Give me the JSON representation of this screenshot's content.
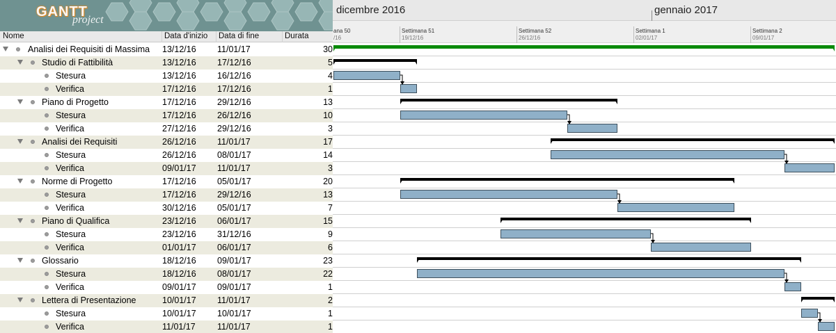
{
  "branding": {
    "logo_text": "GANTT",
    "logo_sub": "project"
  },
  "columns": {
    "name": "Nome",
    "start": "Data d'inizio",
    "end": "Data di fine",
    "duration": "Durata"
  },
  "timeline": {
    "months": [
      "dicembre 2016",
      "gennaio 2017"
    ],
    "weeks": [
      {
        "label": "ana 50",
        "date": "/16"
      },
      {
        "label": "Settimana 51",
        "date": "19/12/16"
      },
      {
        "label": "Settimana 52",
        "date": "26/12/16"
      },
      {
        "label": "Settimana 1",
        "date": "02/01/17"
      },
      {
        "label": "Settimana 2",
        "date": "09/01/17"
      }
    ],
    "colors": {
      "summary": "#000000",
      "task": "#8fb0c8",
      "task_border": "#3d4f5c",
      "project": "#0a8a0a",
      "grid": "#cfcfcf"
    }
  },
  "tasks": [
    {
      "name": "Analisi dei Requisiti di Massima",
      "start": "13/12/16",
      "end": "11/01/17",
      "duration": "30",
      "level": 0,
      "type": "project",
      "bar_start": 0,
      "bar_days": 30
    },
    {
      "name": "Studio di Fattibilità",
      "start": "13/12/16",
      "end": "17/12/16",
      "duration": "5",
      "level": 1,
      "type": "summary",
      "bar_start": 0,
      "bar_days": 5
    },
    {
      "name": "Stesura",
      "start": "13/12/16",
      "end": "16/12/16",
      "duration": "4",
      "level": 2,
      "type": "task",
      "bar_start": 0,
      "bar_days": 4
    },
    {
      "name": "Verifica",
      "start": "17/12/16",
      "end": "17/12/16",
      "duration": "1",
      "level": 2,
      "type": "task",
      "bar_start": 4,
      "bar_days": 1
    },
    {
      "name": "Piano di Progetto",
      "start": "17/12/16",
      "end": "29/12/16",
      "duration": "13",
      "level": 1,
      "type": "summary",
      "bar_start": 4,
      "bar_days": 13
    },
    {
      "name": "Stesura",
      "start": "17/12/16",
      "end": "26/12/16",
      "duration": "10",
      "level": 2,
      "type": "task",
      "bar_start": 4,
      "bar_days": 10
    },
    {
      "name": "Verifica",
      "start": "27/12/16",
      "end": "29/12/16",
      "duration": "3",
      "level": 2,
      "type": "task",
      "bar_start": 14,
      "bar_days": 3
    },
    {
      "name": "Analisi dei Requisiti",
      "start": "26/12/16",
      "end": "11/01/17",
      "duration": "17",
      "level": 1,
      "type": "summary",
      "bar_start": 13,
      "bar_days": 17
    },
    {
      "name": "Stesura",
      "start": "26/12/16",
      "end": "08/01/17",
      "duration": "14",
      "level": 2,
      "type": "task",
      "bar_start": 13,
      "bar_days": 14
    },
    {
      "name": "Verifica",
      "start": "09/01/17",
      "end": "11/01/17",
      "duration": "3",
      "level": 2,
      "type": "task",
      "bar_start": 27,
      "bar_days": 3
    },
    {
      "name": "Norme di Progetto",
      "start": "17/12/16",
      "end": "05/01/17",
      "duration": "20",
      "level": 1,
      "type": "summary",
      "bar_start": 4,
      "bar_days": 20
    },
    {
      "name": "Stesura",
      "start": "17/12/16",
      "end": "29/12/16",
      "duration": "13",
      "level": 2,
      "type": "task",
      "bar_start": 4,
      "bar_days": 13
    },
    {
      "name": "Verifica",
      "start": "30/12/16",
      "end": "05/01/17",
      "duration": "7",
      "level": 2,
      "type": "task",
      "bar_start": 17,
      "bar_days": 7
    },
    {
      "name": "Piano di Qualifica",
      "start": "23/12/16",
      "end": "06/01/17",
      "duration": "15",
      "level": 1,
      "type": "summary",
      "bar_start": 10,
      "bar_days": 15
    },
    {
      "name": "Stesura",
      "start": "23/12/16",
      "end": "31/12/16",
      "duration": "9",
      "level": 2,
      "type": "task",
      "bar_start": 10,
      "bar_days": 9
    },
    {
      "name": "Verifica",
      "start": "01/01/17",
      "end": "06/01/17",
      "duration": "6",
      "level": 2,
      "type": "task",
      "bar_start": 19,
      "bar_days": 6
    },
    {
      "name": "Glossario",
      "start": "18/12/16",
      "end": "09/01/17",
      "duration": "23",
      "level": 1,
      "type": "summary",
      "bar_start": 5,
      "bar_days": 23
    },
    {
      "name": "Stesura",
      "start": "18/12/16",
      "end": "08/01/17",
      "duration": "22",
      "level": 2,
      "type": "task",
      "bar_start": 5,
      "bar_days": 22
    },
    {
      "name": "Verifica",
      "start": "09/01/17",
      "end": "09/01/17",
      "duration": "1",
      "level": 2,
      "type": "task",
      "bar_start": 27,
      "bar_days": 1
    },
    {
      "name": "Lettera di Presentazione",
      "start": "10/01/17",
      "end": "11/01/17",
      "duration": "2",
      "level": 1,
      "type": "summary",
      "bar_start": 28,
      "bar_days": 2
    },
    {
      "name": "Stesura",
      "start": "10/01/17",
      "end": "10/01/17",
      "duration": "1",
      "level": 2,
      "type": "task",
      "bar_start": 28,
      "bar_days": 1
    },
    {
      "name": "Verifica",
      "start": "11/01/17",
      "end": "11/01/17",
      "duration": "1",
      "level": 2,
      "type": "task",
      "bar_start": 29,
      "bar_days": 1
    }
  ],
  "dependencies": [
    [
      2,
      3
    ],
    [
      5,
      6
    ],
    [
      8,
      9
    ],
    [
      11,
      12
    ],
    [
      14,
      15
    ],
    [
      17,
      18
    ],
    [
      20,
      21
    ]
  ]
}
